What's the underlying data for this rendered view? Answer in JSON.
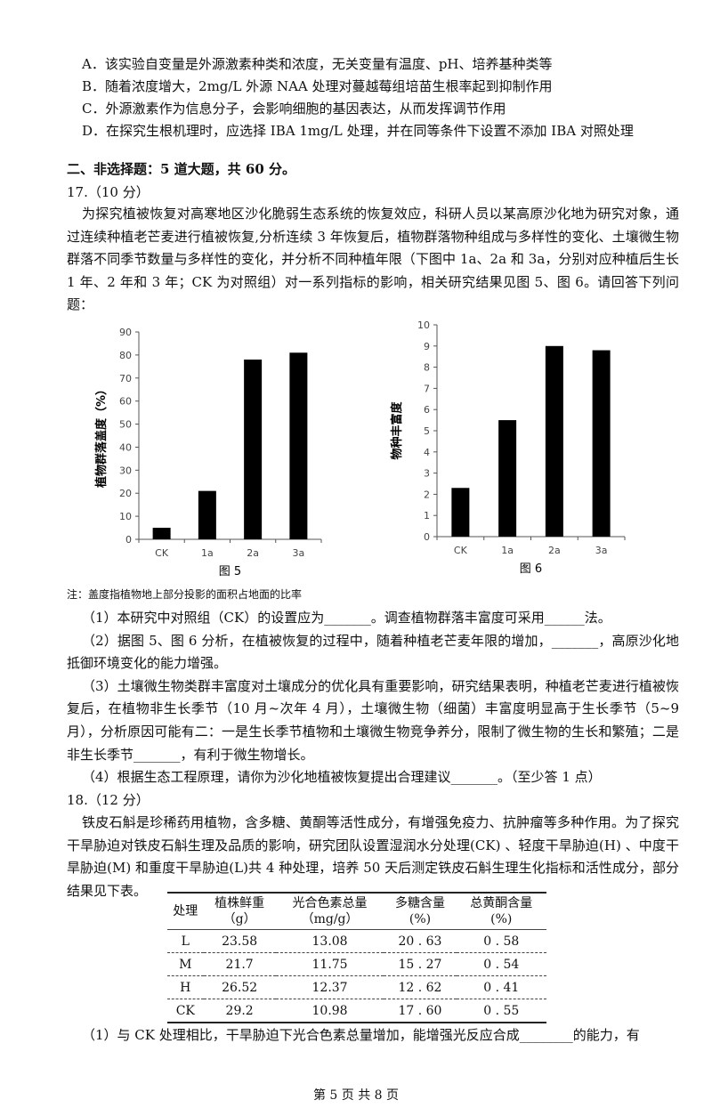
{
  "options": [
    "A．该实验自变量是外源激素种类和浓度，无关变量有温度、pH、培养基种类等",
    "B．随着浓度增大，2mg/L 外源 NAA 处理对蔓越莓组培苗生根率起到抑制作用",
    "C．外源激素作为信息分子，会影响细胞的基因表达，从而发挥调节作用",
    "D．在探究生根机理时，应选择 IBA 1mg/L 处理，并在同等条件下设置不添加 IBA 对照处理"
  ],
  "section_title": "二、非选择题：5 道大题，共 60 分。",
  "q17": {
    "number": "17.（10 分）",
    "intro": "为探究植被恢复对高寒地区沙化脆弱生态系统的恢复效应，科研人员以某高原沙化地为研究对象，通过连续种植老芒麦进行植被恢复,分析连续 3 年恢复后，植物群落物种组成与多样性的变化、土壤微生物群落不同季节数量与多样性的变化，并分析不同种植年限（下图中 1a、2a 和 3a，分别对应种植后生长 1 年、2 年和 3 年；CK 为对照组）对一系列指标的影响，相关研究结果见图 5、图 6。请回答下列问题：",
    "note": "注：盖度指植物地上部分投影的面积占地面的比率",
    "sub": [
      "（1）本研究中对照组（CK）的设置应为_______。调查植物群落丰富度可采用______法。",
      "（2）据图 5、图 6 分析，在植被恢复的过程中，随着种植老芒麦年限的增加，_______，高原沙化地抵御环境变化的能力增强。",
      "（3）土壤微生物类群丰富度对土壤成分的优化具有重要影响，研究结果表明，种植老芒麦进行植被恢复后，在植物非生长季节（10 月~次年 4 月），土壤微生物（细菌）丰富度明显高于生长季节（5~9 月），分析原因可能有二：一是生长季节植物和土壤微生物竞争养分，限制了微生物的生长和繁殖；二是非生长季节_______，有利于微生物增长。",
      "（4）根据生态工程原理，请你为沙化地植被恢复提出合理建议_______。（至少答 1 点）"
    ]
  },
  "chart_data": [
    {
      "type": "bar",
      "caption": "图 5",
      "ylabel": "植物群落盖度（%）",
      "categories": [
        "CK",
        "1a",
        "2a",
        "3a"
      ],
      "values": [
        5,
        21,
        78,
        81
      ],
      "ylim": [
        0,
        90
      ],
      "yticks": [
        0,
        10,
        20,
        30,
        40,
        50,
        60,
        70,
        80,
        90
      ],
      "grid": false,
      "bar_color": "#000000"
    },
    {
      "type": "bar",
      "caption": "图 6",
      "ylabel": "物种丰富度",
      "categories": [
        "CK",
        "1a",
        "2a",
        "3a"
      ],
      "values": [
        2.3,
        5.5,
        9.0,
        8.8
      ],
      "ylim": [
        0,
        10
      ],
      "yticks": [
        0,
        1,
        2,
        3,
        4,
        5,
        6,
        7,
        8,
        9,
        10
      ],
      "grid": false,
      "bar_color": "#000000"
    }
  ],
  "q18": {
    "number": "18.（12 分）",
    "intro": "铁皮石斛是珍稀药用植物，含多糖、黄酮等活性成分，有增强免疫力、抗肿瘤等多种作用。为了探究干旱胁迫对铁皮石斛生理及品质的影响，研究团队设置湿润水分处理(CK) 、轻度干旱胁迫(H) 、中度干旱胁迫(M) 和重度干旱胁迫(L)共 4 种处理，培养 50 天后测定铁皮石斛生理生化指标和活性成分，部分结果见下表。",
    "table": {
      "headers": [
        [
          "处理",
          ""
        ],
        [
          "植株鲜重",
          "（g）"
        ],
        [
          "光合色素总量",
          "（mg/g）"
        ],
        [
          "多糖含量",
          "(%)"
        ],
        [
          "总黄酮含量",
          "(%)"
        ]
      ],
      "rows": [
        [
          "L",
          "23.58",
          "13.08",
          "20 . 63",
          "0 . 58"
        ],
        [
          "M",
          "21.7",
          "11.75",
          "15 . 27",
          "0 . 54"
        ],
        [
          "H",
          "26.52",
          "12.37",
          "12 . 62",
          "0 . 41"
        ],
        [
          "CK",
          "29.2",
          "10.98",
          "17 . 60",
          "0 . 55"
        ]
      ]
    },
    "sub1": "（1）与 CK 处理相比，干旱胁迫下光合色素总量增加，能增强光反应合成________的能力，有"
  },
  "footer": "第 5 页 共 8 页"
}
